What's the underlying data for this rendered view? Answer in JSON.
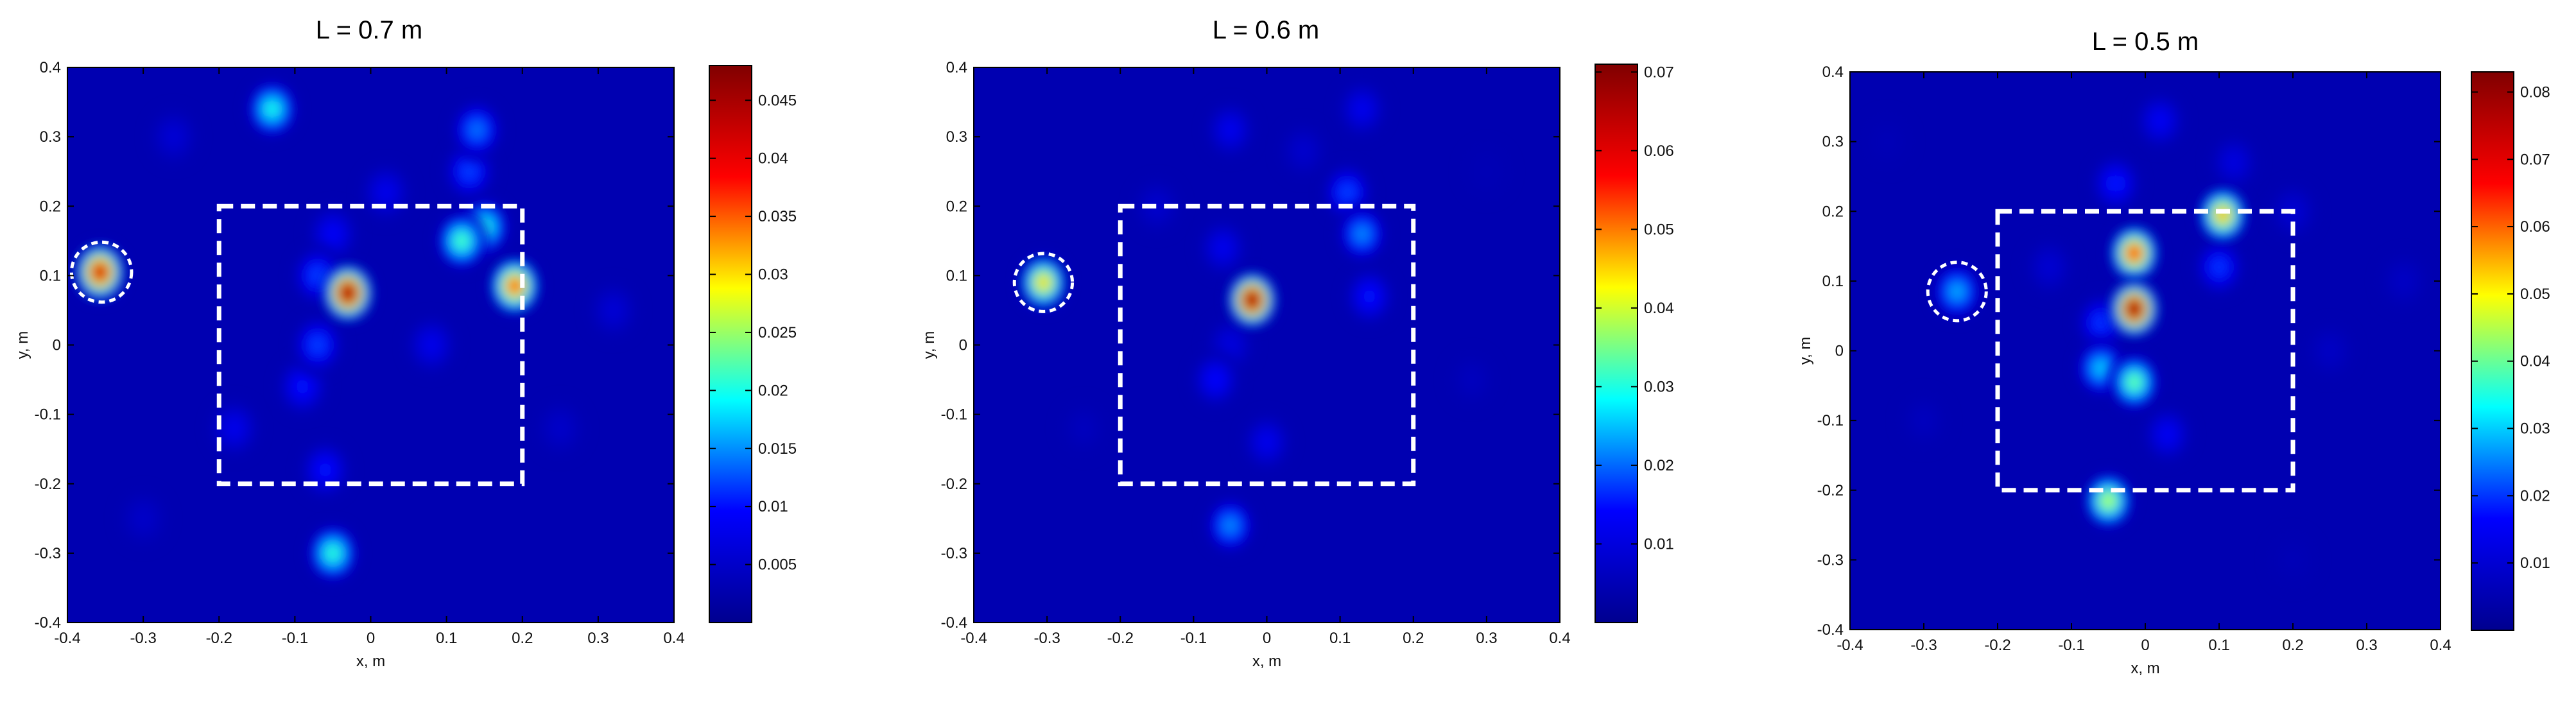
{
  "colormap": [
    "#00008f",
    "#0000ff",
    "#00ffff",
    "#ffff00",
    "#ff0000",
    "#800000"
  ],
  "box_color": "#ffffff",
  "chart_data": [
    {
      "type": "heatmap",
      "title": "L = 0.7 m",
      "xlabel": "x, m",
      "ylabel": "y, m",
      "xlim": [
        -0.4,
        0.4
      ],
      "ylim": [
        -0.4,
        0.4
      ],
      "xticks": [
        "-0.4",
        "-0.3",
        "-0.2",
        "-0.1",
        "0",
        "0.1",
        "0.2",
        "0.3",
        "0.4"
      ],
      "yticks": [
        "-0.4",
        "-0.3",
        "-0.2",
        "-0.1",
        "0",
        "0.1",
        "0.2",
        "0.3",
        "0.4"
      ],
      "colorbar": {
        "min": 0,
        "max": 0.048,
        "ticks": [
          "0.005",
          "0.01",
          "0.015",
          "0.02",
          "0.025",
          "0.03",
          "0.035",
          "0.04",
          "0.045"
        ]
      },
      "dashed_box": {
        "x": [
          -0.2,
          0.2
        ],
        "y": [
          -0.2,
          0.2
        ]
      },
      "dashed_circle": {
        "x": -0.355,
        "y": 0.105,
        "r": 0.018
      },
      "hotspots": [
        {
          "x": -0.357,
          "y": 0.105,
          "value": 0.043
        },
        {
          "x": -0.03,
          "y": 0.075,
          "value": 0.047
        },
        {
          "x": 0.19,
          "y": 0.085,
          "value": 0.036
        },
        {
          "x": 0.12,
          "y": 0.15,
          "value": 0.022
        },
        {
          "x": 0.15,
          "y": 0.17,
          "value": 0.02
        },
        {
          "x": -0.07,
          "y": 0.1,
          "value": 0.012
        },
        {
          "x": -0.07,
          "y": 0.0,
          "value": 0.012
        },
        {
          "x": -0.09,
          "y": -0.06,
          "value": 0.01
        },
        {
          "x": -0.05,
          "y": 0.16,
          "value": 0.009
        },
        {
          "x": -0.06,
          "y": -0.18,
          "value": 0.01
        },
        {
          "x": -0.05,
          "y": -0.3,
          "value": 0.021
        },
        {
          "x": -0.13,
          "y": 0.34,
          "value": 0.02
        },
        {
          "x": 0.14,
          "y": 0.31,
          "value": 0.014
        },
        {
          "x": 0.13,
          "y": 0.25,
          "value": 0.012
        },
        {
          "x": 0.02,
          "y": 0.22,
          "value": 0.008
        },
        {
          "x": 0.08,
          "y": 0.0,
          "value": 0.008
        },
        {
          "x": -0.18,
          "y": -0.12,
          "value": 0.008
        },
        {
          "x": -0.26,
          "y": 0.3,
          "value": 0.006
        },
        {
          "x": 0.32,
          "y": 0.05,
          "value": 0.006
        },
        {
          "x": 0.25,
          "y": -0.12,
          "value": 0.005
        },
        {
          "x": -0.3,
          "y": -0.25,
          "value": 0.005
        }
      ]
    },
    {
      "type": "heatmap",
      "title": "L = 0.6 m",
      "xlabel": "x, m",
      "ylabel": "y, m",
      "xlim": [
        -0.4,
        0.4
      ],
      "ylim": [
        -0.4,
        0.4
      ],
      "xticks": [
        "-0.4",
        "-0.3",
        "-0.2",
        "-0.1",
        "0",
        "0.1",
        "0.2",
        "0.3",
        "0.4"
      ],
      "yticks": [
        "-0.4",
        "-0.3",
        "-0.2",
        "-0.1",
        "0",
        "0.1",
        "0.2",
        "0.3",
        "0.4"
      ],
      "colorbar": {
        "min": 0,
        "max": 0.071,
        "ticks": [
          "0.01",
          "0.02",
          "0.03",
          "0.04",
          "0.05",
          "0.06",
          "0.07"
        ]
      },
      "dashed_box": {
        "x": [
          -0.2,
          0.2
        ],
        "y": [
          -0.2,
          0.2
        ]
      },
      "dashed_circle": {
        "x": -0.305,
        "y": 0.09,
        "r": 0.018
      },
      "hotspots": [
        {
          "x": -0.305,
          "y": 0.09,
          "value": 0.045
        },
        {
          "x": -0.02,
          "y": 0.065,
          "value": 0.07
        },
        {
          "x": 0.13,
          "y": 0.16,
          "value": 0.022
        },
        {
          "x": 0.11,
          "y": 0.22,
          "value": 0.018
        },
        {
          "x": 0.14,
          "y": 0.07,
          "value": 0.015
        },
        {
          "x": -0.06,
          "y": 0.14,
          "value": 0.012
        },
        {
          "x": -0.07,
          "y": -0.05,
          "value": 0.014
        },
        {
          "x": -0.05,
          "y": 0.0,
          "value": 0.01
        },
        {
          "x": -0.05,
          "y": -0.26,
          "value": 0.022
        },
        {
          "x": 0.0,
          "y": -0.14,
          "value": 0.012
        },
        {
          "x": -0.05,
          "y": 0.31,
          "value": 0.012
        },
        {
          "x": 0.13,
          "y": 0.34,
          "value": 0.012
        },
        {
          "x": 0.05,
          "y": 0.28,
          "value": 0.008
        },
        {
          "x": -0.15,
          "y": 0.2,
          "value": 0.008
        },
        {
          "x": -0.25,
          "y": -0.12,
          "value": 0.006
        },
        {
          "x": 0.28,
          "y": -0.05,
          "value": 0.006
        },
        {
          "x": 0.3,
          "y": 0.25,
          "value": 0.005
        }
      ]
    },
    {
      "type": "heatmap",
      "title": "L = 0.5 m",
      "xlabel": "x, m",
      "ylabel": "y, m",
      "xlim": [
        -0.4,
        0.4
      ],
      "ylim": [
        -0.4,
        0.4
      ],
      "xticks": [
        "-0.4",
        "-0.3",
        "-0.2",
        "-0.1",
        "0",
        "0.1",
        "0.2",
        "0.3",
        "0.4"
      ],
      "yticks": [
        "-0.4",
        "-0.3",
        "-0.2",
        "-0.1",
        "0",
        "0.1",
        "0.2",
        "0.3",
        "0.4"
      ],
      "colorbar": {
        "min": 0,
        "max": 0.083,
        "ticks": [
          "0.01",
          "0.02",
          "0.03",
          "0.04",
          "0.05",
          "0.06",
          "0.07",
          "0.08"
        ]
      },
      "dashed_box": {
        "x": [
          -0.2,
          0.2
        ],
        "y": [
          -0.2,
          0.2
        ]
      },
      "dashed_circle": {
        "x": -0.255,
        "y": 0.085,
        "r": 0.018
      },
      "hotspots": [
        {
          "x": -0.255,
          "y": 0.085,
          "value": 0.028
        },
        {
          "x": -0.015,
          "y": 0.06,
          "value": 0.082
        },
        {
          "x": -0.015,
          "y": 0.14,
          "value": 0.065
        },
        {
          "x": -0.015,
          "y": -0.045,
          "value": 0.04
        },
        {
          "x": -0.06,
          "y": -0.025,
          "value": 0.03
        },
        {
          "x": 0.105,
          "y": 0.195,
          "value": 0.055
        },
        {
          "x": 0.1,
          "y": 0.12,
          "value": 0.02
        },
        {
          "x": -0.05,
          "y": -0.215,
          "value": 0.045
        },
        {
          "x": -0.06,
          "y": 0.04,
          "value": 0.02
        },
        {
          "x": 0.03,
          "y": -0.12,
          "value": 0.015
        },
        {
          "x": -0.04,
          "y": 0.24,
          "value": 0.018
        },
        {
          "x": 0.02,
          "y": 0.33,
          "value": 0.015
        },
        {
          "x": 0.12,
          "y": 0.27,
          "value": 0.012
        },
        {
          "x": -0.13,
          "y": 0.12,
          "value": 0.01
        },
        {
          "x": 0.2,
          "y": 0.2,
          "value": 0.01
        },
        {
          "x": 0.25,
          "y": 0.0,
          "value": 0.008
        },
        {
          "x": 0.35,
          "y": 0.1,
          "value": 0.008
        },
        {
          "x": -0.3,
          "y": -0.1,
          "value": 0.007
        },
        {
          "x": 0.2,
          "y": -0.3,
          "value": 0.006
        },
        {
          "x": -0.35,
          "y": 0.3,
          "value": 0.006
        }
      ]
    }
  ]
}
